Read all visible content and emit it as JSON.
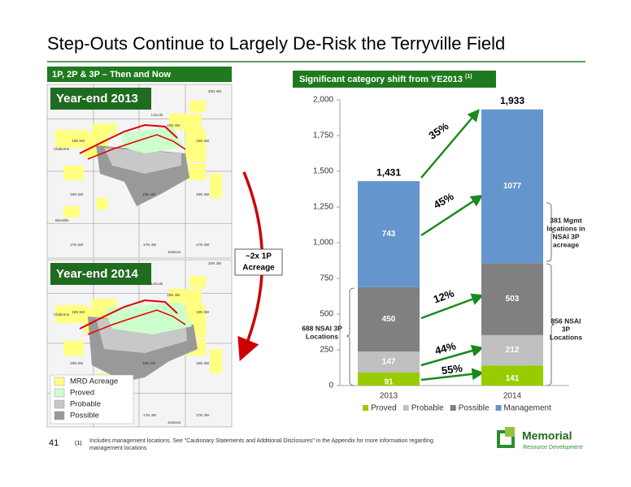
{
  "slide": {
    "title": "Step-Outs Continue to Largely De-Risk the Terryville Field",
    "left_header": "1P, 2P & 3P – Then and Now",
    "right_header": "Significant category shift from YE2013",
    "right_header_note": "(1)",
    "maps": [
      {
        "label": "Year-end 2013",
        "places": [
          "20N 3W",
          "Lincoln",
          "19N 4W",
          "Claiborne",
          "19N 5W",
          "19N 3W",
          "18N 5W",
          "18N 4W",
          "18N 3W",
          "Bienville",
          "17N 5W",
          "17N 4W",
          "17N 3W",
          "Jackson"
        ]
      },
      {
        "label": "Year-end 2014",
        "places": [
          "20N 3W",
          "Lincoln",
          "19N 4W",
          "Claiborne",
          "19N 5W",
          "19N 3W",
          "18N 5W",
          "18N 4W",
          "18N 3W",
          "17N 4W",
          "17N 3W",
          "Jackson"
        ]
      }
    ],
    "map_legend": [
      "MRD Acreage",
      "Proved",
      "Probable",
      "Possible"
    ],
    "map_legend_colors": [
      "#ffff80",
      "#ccffcc",
      "#c8c8c8",
      "#999999"
    ],
    "acreage_note": [
      "~2x 1P",
      "Acreage"
    ],
    "page_number": "41",
    "footnote_marker": "(1)",
    "footnote": [
      "Includes management locations. See \"Cautionary Statements and Additional Disclosures\" in the Appendix for more information regarding",
      "management locations"
    ],
    "logo": [
      "Memorial",
      "Resource Development"
    ]
  },
  "chart_data": {
    "type": "stacked_bar",
    "categories": [
      "2013",
      "2014"
    ],
    "series": [
      {
        "name": "Proved",
        "color": "#99cc00",
        "values": [
          91,
          141
        ]
      },
      {
        "name": "Probable",
        "color": "#c0c0c0",
        "values": [
          147,
          212
        ]
      },
      {
        "name": "Possible",
        "color": "#808080",
        "values": [
          450,
          503
        ]
      },
      {
        "name": "Management",
        "color": "#6495cd",
        "values": [
          743,
          1077
        ]
      }
    ],
    "totals": [
      1431,
      1933
    ],
    "total_labels": [
      "1,431",
      "1,933"
    ],
    "ylim": [
      0,
      2000
    ],
    "yticks": [
      0,
      250,
      500,
      750,
      {
        "value": 1000,
        "label": "1,000"
      },
      {
        "value": 1250,
        "label": "1,250"
      },
      {
        "value": 1500,
        "label": "1,500"
      },
      {
        "value": 1750,
        "label": "1,750"
      },
      {
        "value": 2000,
        "label": "2,000"
      }
    ],
    "legend": "bottom",
    "annotations": [
      "35%",
      "45%",
      "12%",
      "44%",
      "55%"
    ],
    "brace_labels": [
      [
        "688 NSAI 3P",
        "Locations"
      ],
      [
        "381 Mgmt",
        "locations in",
        "NSAI 3P",
        "acreage"
      ],
      [
        "856 NSAI",
        "3P",
        "Locations"
      ]
    ]
  }
}
